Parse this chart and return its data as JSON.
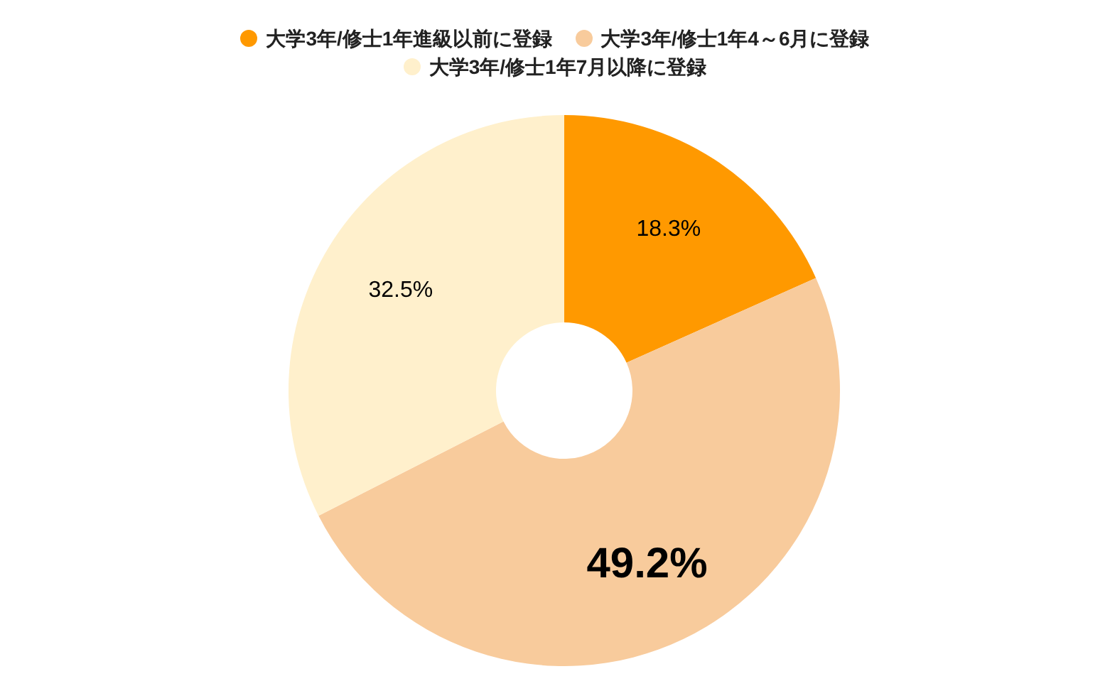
{
  "chart_data": {
    "type": "donut",
    "categories": [
      "大学3年/修士1年進級以前に登録",
      "大学3年/修士1年4～6月に登録",
      "大学3年/修士1年7月以降に登録"
    ],
    "values": [
      18.3,
      49.2,
      32.5
    ],
    "colors": [
      "#ff9900",
      "#f8cb9c",
      "#fff0cc"
    ],
    "value_labels": [
      "18.3%",
      "49.2%",
      "32.5%"
    ],
    "legend": "top"
  }
}
